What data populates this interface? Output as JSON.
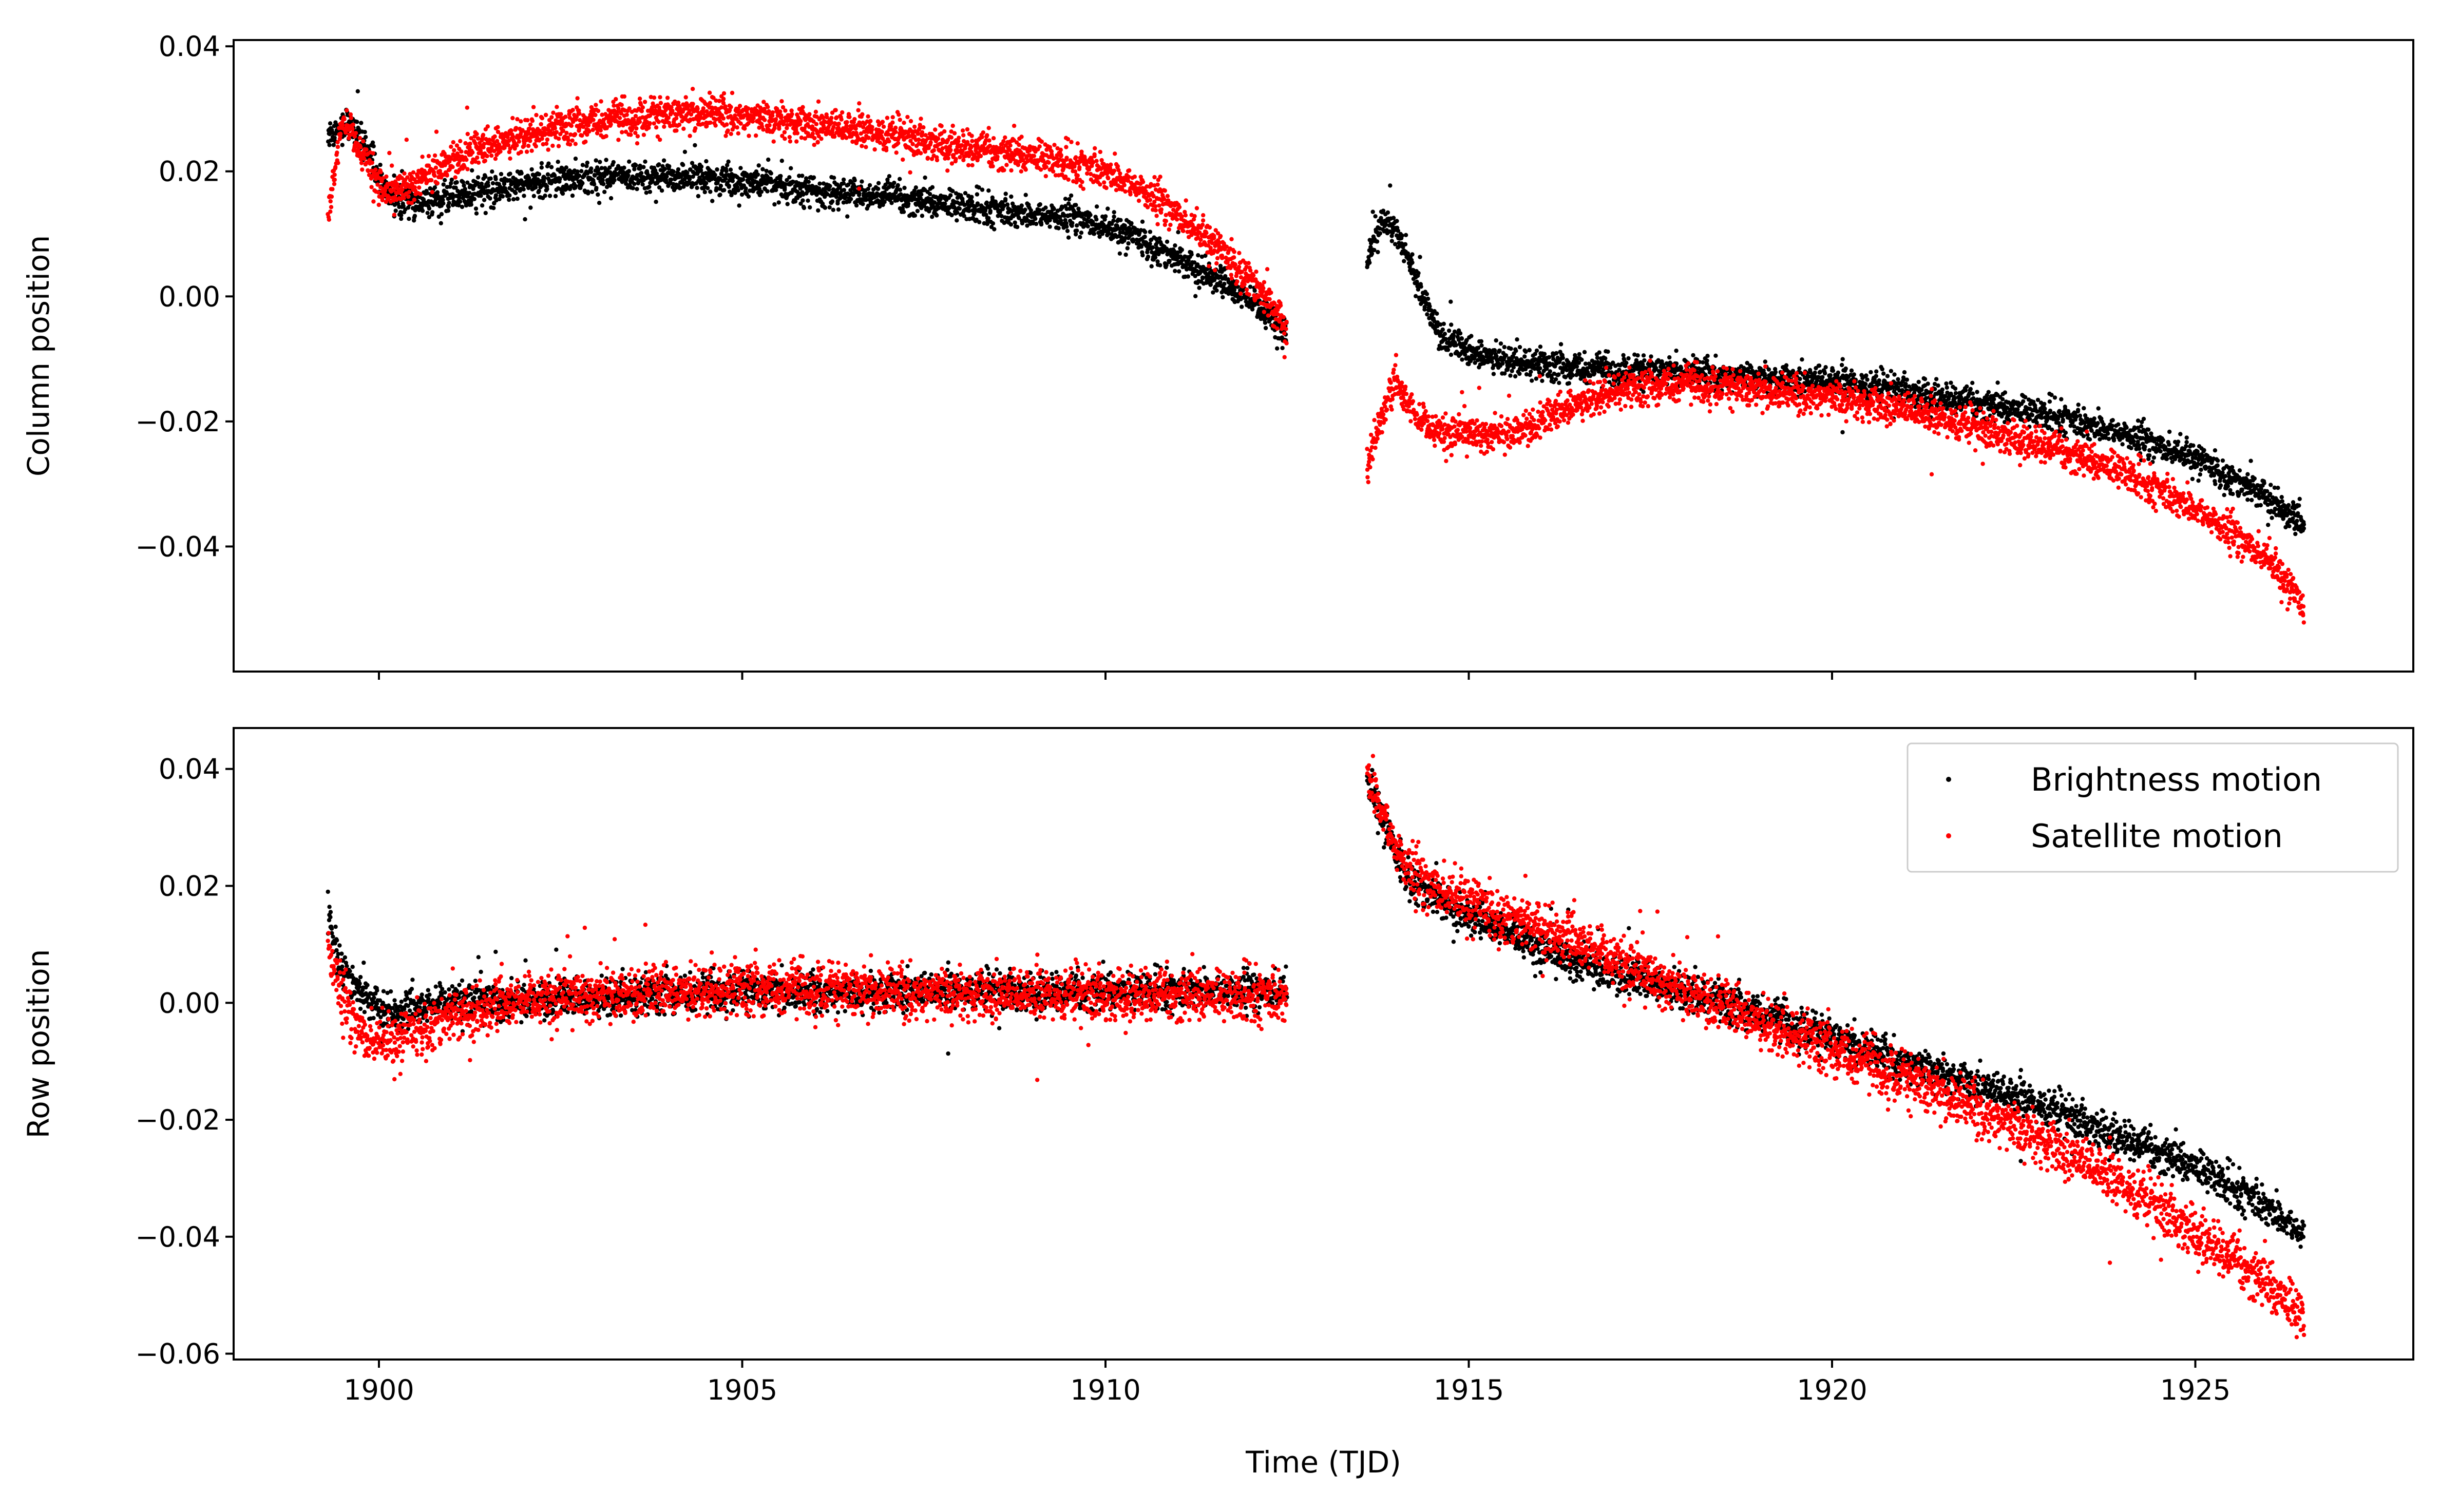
{
  "figure": {
    "xlabel": "Time (TJD)",
    "legend": {
      "placement": "top-right",
      "entries": [
        "Brightness motion",
        "Satellite motion"
      ]
    }
  },
  "colors": {
    "brightness": "#000000",
    "satellite": "#ff0000",
    "axes": "#000000",
    "legend_border": "#cccccc"
  },
  "chart_data": [
    {
      "type": "scatter",
      "panel": "top",
      "ylabel": "Column position",
      "xlim": [
        1898,
        1928
      ],
      "ylim": [
        -0.06,
        0.041
      ],
      "xticks": [
        1900,
        1905,
        1910,
        1915,
        1920,
        1925
      ],
      "xtick_labels_shown": false,
      "yticks": [
        -0.04,
        -0.02,
        0.0,
        0.02,
        0.04
      ],
      "ytick_labels": [
        "−0.04",
        "−0.02",
        "0.00",
        "0.02",
        "0.04"
      ],
      "series": [
        {
          "name": "Brightness motion",
          "color": "#000000",
          "trend": [
            [
              1899.3,
              0.026
            ],
            [
              1899.6,
              0.028
            ],
            [
              1899.9,
              0.022
            ],
            [
              1900.1,
              0.016
            ],
            [
              1900.5,
              0.015
            ],
            [
              1901,
              0.016
            ],
            [
              1902,
              0.018
            ],
            [
              1903,
              0.019
            ],
            [
              1904,
              0.019
            ],
            [
              1905,
              0.0185
            ],
            [
              1906,
              0.017
            ],
            [
              1907,
              0.016
            ],
            [
              1908,
              0.0145
            ],
            [
              1909,
              0.013
            ],
            [
              1909.6,
              0.0125
            ],
            [
              1910,
              0.011
            ],
            [
              1910.5,
              0.009
            ],
            [
              1911,
              0.006
            ],
            [
              1911.5,
              0.003
            ],
            [
              1912,
              -0.001
            ],
            [
              1912.5,
              -0.006
            ]
          ],
          "trend2": [
            [
              1913.6,
              0.005
            ],
            [
              1913.8,
              0.012
            ],
            [
              1914.0,
              0.011
            ],
            [
              1914.3,
              0.002
            ],
            [
              1914.6,
              -0.006
            ],
            [
              1915,
              -0.009
            ],
            [
              1916,
              -0.011
            ],
            [
              1917,
              -0.012
            ],
            [
              1918,
              -0.012
            ],
            [
              1919,
              -0.013
            ],
            [
              1920,
              -0.0135
            ],
            [
              1921,
              -0.015
            ],
            [
              1922,
              -0.017
            ],
            [
              1923,
              -0.019
            ],
            [
              1924,
              -0.022
            ],
            [
              1925,
              -0.026
            ],
            [
              1926,
              -0.032
            ],
            [
              1926.5,
              -0.037
            ]
          ],
          "spread": 0.0012
        },
        {
          "name": "Satellite motion",
          "color": "#ff0000",
          "trend": [
            [
              1899.3,
              0.013
            ],
            [
              1899.5,
              0.028
            ],
            [
              1899.8,
              0.022
            ],
            [
              1900.1,
              0.016
            ],
            [
              1900.6,
              0.019
            ],
            [
              1901,
              0.022
            ],
            [
              1902,
              0.026
            ],
            [
              1903,
              0.028
            ],
            [
              1904,
              0.029
            ],
            [
              1904.5,
              0.0295
            ],
            [
              1905,
              0.029
            ],
            [
              1906,
              0.0275
            ],
            [
              1907,
              0.026
            ],
            [
              1908,
              0.024
            ],
            [
              1909,
              0.0225
            ],
            [
              1909.6,
              0.021
            ],
            [
              1910,
              0.02
            ],
            [
              1910.5,
              0.017
            ],
            [
              1911,
              0.013
            ],
            [
              1911.5,
              0.008
            ],
            [
              1912,
              0.003
            ],
            [
              1912.5,
              -0.005
            ]
          ],
          "trend2": [
            [
              1913.6,
              -0.027
            ],
            [
              1913.8,
              -0.019
            ],
            [
              1914.0,
              -0.014
            ],
            [
              1914.3,
              -0.02
            ],
            [
              1914.6,
              -0.022
            ],
            [
              1915,
              -0.022
            ],
            [
              1915.5,
              -0.022
            ],
            [
              1916,
              -0.02
            ],
            [
              1916.5,
              -0.017
            ],
            [
              1917,
              -0.015
            ],
            [
              1918,
              -0.014
            ],
            [
              1919,
              -0.015
            ],
            [
              1920,
              -0.016
            ],
            [
              1921,
              -0.018
            ],
            [
              1922,
              -0.021
            ],
            [
              1923,
              -0.024
            ],
            [
              1924,
              -0.028
            ],
            [
              1925,
              -0.034
            ],
            [
              1926,
              -0.042
            ],
            [
              1926.5,
              -0.05
            ]
          ],
          "spread": 0.0014
        }
      ]
    },
    {
      "type": "scatter",
      "panel": "bottom",
      "ylabel": "Row position",
      "xlim": [
        1898,
        1928
      ],
      "ylim": [
        -0.061,
        0.047
      ],
      "xticks": [
        1900,
        1905,
        1910,
        1915,
        1920,
        1925
      ],
      "xtick_labels": [
        "1900",
        "1905",
        "1910",
        "1915",
        "1920",
        "1925"
      ],
      "yticks": [
        -0.06,
        -0.04,
        -0.02,
        0.0,
        0.02,
        0.04
      ],
      "ytick_labels": [
        "−0.06",
        "−0.04",
        "−0.02",
        "0.00",
        "0.02",
        "0.04"
      ],
      "series": [
        {
          "name": "Brightness motion",
          "color": "#000000",
          "trend": [
            [
              1899.3,
              0.015
            ],
            [
              1899.5,
              0.006
            ],
            [
              1899.8,
              0.001
            ],
            [
              1900.2,
              -0.002
            ],
            [
              1900.6,
              -0.001
            ],
            [
              1901,
              0.0
            ],
            [
              1902,
              0.0005
            ],
            [
              1903,
              0.001
            ],
            [
              1905,
              0.002
            ],
            [
              1907,
              0.002
            ],
            [
              1909,
              0.002
            ],
            [
              1911,
              0.002
            ],
            [
              1912.5,
              0.002
            ]
          ],
          "trend2": [
            [
              1913.6,
              0.038
            ],
            [
              1913.8,
              0.032
            ],
            [
              1914.0,
              0.025
            ],
            [
              1914.3,
              0.02
            ],
            [
              1915,
              0.015
            ],
            [
              1916,
              0.009
            ],
            [
              1917,
              0.005
            ],
            [
              1918,
              0.002
            ],
            [
              1919,
              -0.002
            ],
            [
              1920,
              -0.006
            ],
            [
              1921,
              -0.01
            ],
            [
              1922,
              -0.014
            ],
            [
              1923,
              -0.018
            ],
            [
              1924,
              -0.023
            ],
            [
              1925,
              -0.028
            ],
            [
              1926,
              -0.035
            ],
            [
              1926.5,
              -0.04
            ]
          ],
          "spread": 0.0016
        },
        {
          "name": "Satellite motion",
          "color": "#ff0000",
          "trend": [
            [
              1899.3,
              0.01
            ],
            [
              1899.5,
              0.0
            ],
            [
              1899.8,
              -0.006
            ],
            [
              1900.2,
              -0.007
            ],
            [
              1900.6,
              -0.004
            ],
            [
              1901,
              -0.002
            ],
            [
              1902,
              0.0
            ],
            [
              1903,
              0.0015
            ],
            [
              1905,
              0.0025
            ],
            [
              1907,
              0.002
            ],
            [
              1909,
              0.0015
            ],
            [
              1911,
              0.0015
            ],
            [
              1912.5,
              0.001
            ]
          ],
          "trend2": [
            [
              1913.6,
              0.039
            ],
            [
              1913.8,
              0.033
            ],
            [
              1914.0,
              0.026
            ],
            [
              1914.3,
              0.021
            ],
            [
              1915,
              0.017
            ],
            [
              1916,
              0.013
            ],
            [
              1917,
              0.007
            ],
            [
              1918,
              0.002
            ],
            [
              1919,
              -0.003
            ],
            [
              1920,
              -0.008
            ],
            [
              1921,
              -0.013
            ],
            [
              1922,
              -0.018
            ],
            [
              1923,
              -0.024
            ],
            [
              1924,
              -0.031
            ],
            [
              1925,
              -0.039
            ],
            [
              1926,
              -0.048
            ],
            [
              1926.5,
              -0.054
            ]
          ],
          "spread": 0.0022
        }
      ]
    }
  ]
}
